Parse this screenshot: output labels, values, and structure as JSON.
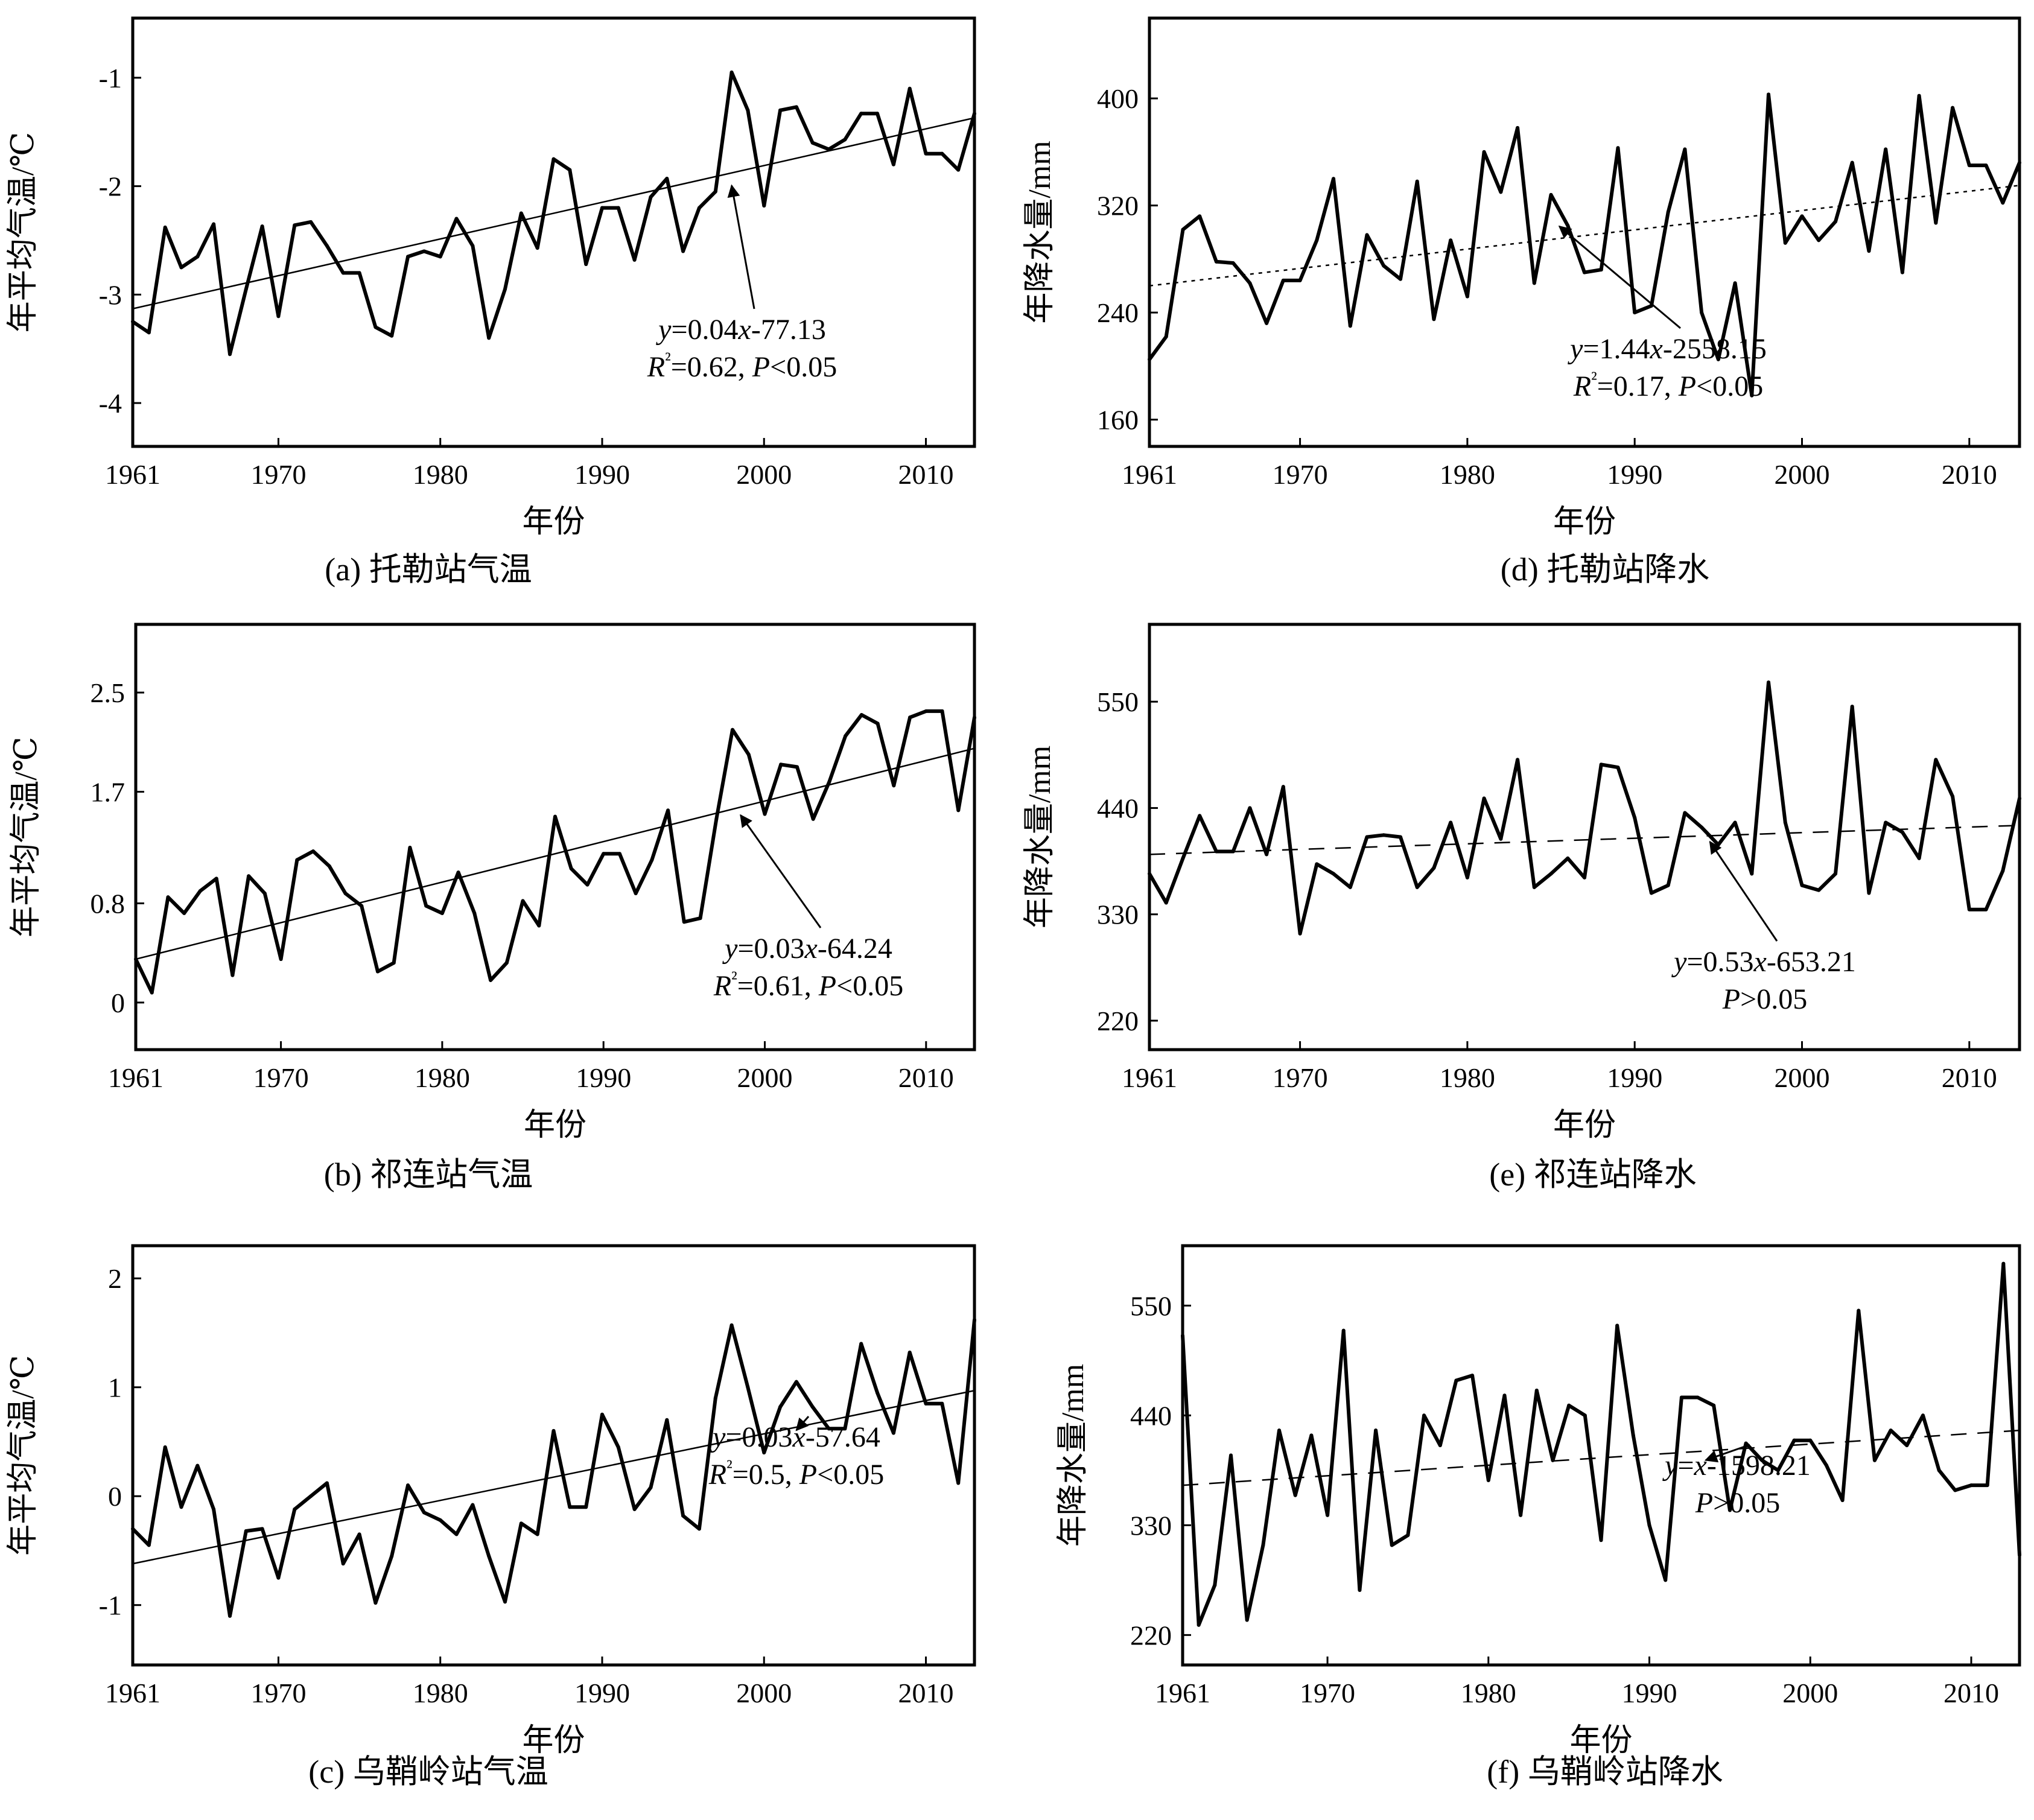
{
  "colors": {
    "ink": "#000000",
    "background": "#ffffff"
  },
  "chart_data": [
    {
      "id": "a",
      "type": "line",
      "caption": "(a) 托勒站气温",
      "xlabel": "年份",
      "ylabel": "年平均气温/℃",
      "xlim": [
        1961,
        2013
      ],
      "ylim": [
        -4.4,
        -0.45
      ],
      "xticks": [
        1961,
        1970,
        1980,
        1990,
        2000,
        2010
      ],
      "yticks": [
        -4,
        -3,
        -2,
        -1
      ],
      "ytick_labels": [
        "-4",
        "-3",
        "-2",
        "-1"
      ],
      "trend": {
        "style": "solid",
        "x": [
          1961,
          2013
        ],
        "y": [
          -3.13,
          -1.37
        ]
      },
      "equation": {
        "line1": [
          "y",
          "=0.04",
          "x",
          "-77.13"
        ],
        "line2": [
          "R",
          "²",
          "=0.62, ",
          "P",
          "<0.05"
        ]
      },
      "arrow_to": [
        1998,
        -1.95
      ],
      "x": [
        1961,
        1962,
        1963,
        1964,
        1965,
        1966,
        1967,
        1968,
        1969,
        1970,
        1971,
        1972,
        1973,
        1974,
        1975,
        1976,
        1977,
        1978,
        1979,
        1980,
        1981,
        1982,
        1983,
        1984,
        1985,
        1986,
        1987,
        1988,
        1989,
        1990,
        1991,
        1992,
        1993,
        1994,
        1995,
        1996,
        1997,
        1998,
        1999,
        2000,
        2001,
        2002,
        2003,
        2004,
        2005,
        2006,
        2007,
        2008,
        2009,
        2010,
        2011,
        2012,
        2013
      ],
      "y": [
        -3.25,
        -3.35,
        -2.38,
        -2.75,
        -2.65,
        -2.35,
        -3.55,
        -2.95,
        -2.37,
        -3.2,
        -2.36,
        -2.33,
        -2.55,
        -2.8,
        -2.8,
        -3.3,
        -3.38,
        -2.65,
        -2.6,
        -2.65,
        -2.3,
        -2.55,
        -3.4,
        -2.95,
        -2.25,
        -2.57,
        -1.75,
        -1.85,
        -2.72,
        -2.2,
        -2.2,
        -2.68,
        -2.1,
        -1.93,
        -2.6,
        -2.2,
        -2.05,
        -0.95,
        -1.3,
        -2.18,
        -1.3,
        -1.27,
        -1.6,
        -1.66,
        -1.57,
        -1.33,
        -1.33,
        -1.8,
        -1.1,
        -1.7,
        -1.7,
        -1.85,
        -1.33
      ]
    },
    {
      "id": "b",
      "type": "line",
      "caption": "(b) 祁连站气温",
      "xlabel": "年份",
      "ylabel": "年平均气温/℃",
      "xlim": [
        1961,
        2013
      ],
      "ylim": [
        -0.38,
        3.05
      ],
      "xticks": [
        1961,
        1970,
        1980,
        1990,
        2000,
        2010
      ],
      "yticks": [
        0,
        0.8,
        1.7,
        2.5
      ],
      "ytick_labels": [
        "0",
        "0.8",
        "1.7",
        "2.5"
      ],
      "trend": {
        "style": "solid",
        "x": [
          1961,
          2013
        ],
        "y": [
          0.35,
          2.05
        ]
      },
      "equation": {
        "line1": [
          "y",
          "=0.03",
          "x",
          "-64.24"
        ],
        "line2": [
          "R",
          "²",
          "=0.61, ",
          "P",
          "<0.05"
        ]
      },
      "arrow_to": [
        1998.5,
        1.55
      ],
      "x": [
        1961,
        1962,
        1963,
        1964,
        1965,
        1966,
        1967,
        1968,
        1969,
        1970,
        1971,
        1972,
        1973,
        1974,
        1975,
        1976,
        1977,
        1978,
        1979,
        1980,
        1981,
        1982,
        1983,
        1984,
        1985,
        1986,
        1987,
        1988,
        1989,
        1990,
        1991,
        1992,
        1993,
        1994,
        1995,
        1996,
        1997,
        1998,
        1999,
        2000,
        2001,
        2002,
        2003,
        2004,
        2005,
        2006,
        2007,
        2008,
        2009,
        2010,
        2011,
        2012,
        2013
      ],
      "y": [
        0.35,
        0.08,
        0.85,
        0.72,
        0.9,
        1.0,
        0.22,
        1.02,
        0.88,
        0.35,
        1.15,
        1.22,
        1.1,
        0.88,
        0.78,
        0.25,
        0.32,
        1.25,
        0.78,
        0.72,
        1.05,
        0.72,
        0.18,
        0.32,
        0.82,
        0.62,
        1.5,
        1.08,
        0.95,
        1.2,
        1.2,
        0.88,
        1.15,
        1.55,
        0.65,
        0.68,
        1.48,
        2.2,
        2.0,
        1.52,
        1.92,
        1.9,
        1.48,
        1.78,
        2.15,
        2.32,
        2.25,
        1.75,
        2.3,
        2.35,
        2.35,
        1.55,
        2.3
      ]
    },
    {
      "id": "c",
      "type": "line",
      "caption": "(c) 乌鞘岭站气温",
      "xlabel": "年份",
      "ylabel": "年平均气温/℃",
      "xlim": [
        1961,
        2013
      ],
      "ylim": [
        -1.55,
        2.3
      ],
      "xticks": [
        1961,
        1970,
        1980,
        1990,
        2000,
        2010
      ],
      "yticks": [
        -1,
        0,
        1,
        2
      ],
      "ytick_labels": [
        "-1",
        "0",
        "1",
        "2"
      ],
      "trend": {
        "style": "solid",
        "x": [
          1961,
          2013
        ],
        "y": [
          -0.62,
          0.97
        ]
      },
      "equation": {
        "line1": [
          "y",
          "=0.03",
          "x",
          "-57.64"
        ],
        "line2": [
          "R",
          "²",
          "=0.5, ",
          "P",
          "<0.05"
        ]
      },
      "arrow_to": [
        2002,
        0.65
      ],
      "x": [
        1961,
        1962,
        1963,
        1964,
        1965,
        1966,
        1967,
        1968,
        1969,
        1970,
        1971,
        1972,
        1973,
        1974,
        1975,
        1976,
        1977,
        1978,
        1979,
        1980,
        1981,
        1982,
        1983,
        1984,
        1985,
        1986,
        1987,
        1988,
        1989,
        1990,
        1991,
        1992,
        1993,
        1994,
        1995,
        1996,
        1997,
        1998,
        1999,
        2000,
        2001,
        2002,
        2003,
        2004,
        2005,
        2006,
        2007,
        2008,
        2009,
        2010,
        2011,
        2012,
        2013
      ],
      "y": [
        -0.3,
        -0.45,
        0.45,
        -0.1,
        0.28,
        -0.12,
        -1.1,
        -0.32,
        -0.3,
        -0.75,
        -0.12,
        0.0,
        0.12,
        -0.62,
        -0.35,
        -0.98,
        -0.55,
        0.1,
        -0.15,
        -0.22,
        -0.35,
        -0.08,
        -0.55,
        -0.97,
        -0.25,
        -0.35,
        0.6,
        -0.1,
        -0.1,
        0.75,
        0.45,
        -0.12,
        0.08,
        0.7,
        -0.18,
        -0.3,
        0.9,
        1.57,
        1.0,
        0.4,
        0.82,
        1.05,
        0.82,
        0.62,
        0.62,
        1.4,
        0.95,
        0.58,
        1.32,
        0.85,
        0.85,
        0.12,
        1.62
      ]
    },
    {
      "id": "d",
      "type": "line",
      "caption": "(d) 托勒站降水",
      "xlabel": "年份",
      "ylabel": "年降水量/mm",
      "xlim": [
        1961,
        2013
      ],
      "ylim": [
        140,
        460
      ],
      "xticks": [
        1961,
        1970,
        1980,
        1990,
        2000,
        2010
      ],
      "yticks": [
        160,
        240,
        320,
        400
      ],
      "ytick_labels": [
        "160",
        "240",
        "320",
        "400"
      ],
      "trend": {
        "style": "dotted",
        "x": [
          1961,
          2013
        ],
        "y": [
          260,
          335
        ]
      },
      "equation": {
        "line1": [
          "y",
          "=1.44",
          "x",
          "-2558.15"
        ],
        "line2": [
          "R",
          "²",
          "=0.17, ",
          "P",
          "<0.05"
        ]
      },
      "arrow_to": [
        1985.5,
        308
      ],
      "x": [
        1961,
        1962,
        1963,
        1964,
        1965,
        1966,
        1967,
        1968,
        1969,
        1970,
        1971,
        1972,
        1973,
        1974,
        1975,
        1976,
        1977,
        1978,
        1979,
        1980,
        1981,
        1982,
        1983,
        1984,
        1985,
        1986,
        1987,
        1988,
        1989,
        1990,
        1991,
        1992,
        1993,
        1994,
        1995,
        1996,
        1997,
        1998,
        1999,
        2000,
        2001,
        2002,
        2003,
        2004,
        2005,
        2006,
        2007,
        2008,
        2009,
        2010,
        2011,
        2012,
        2013
      ],
      "y": [
        205,
        222,
        302,
        312,
        278,
        277,
        262,
        232,
        264,
        264,
        294,
        340,
        230,
        298,
        275,
        265,
        338,
        235,
        294,
        252,
        360,
        330,
        378,
        262,
        328,
        305,
        270,
        272,
        363,
        240,
        245,
        315,
        362,
        240,
        205,
        262,
        178,
        403,
        292,
        312,
        294,
        308,
        352,
        286,
        362,
        270,
        402,
        307,
        393,
        350,
        350,
        322,
        352
      ]
    },
    {
      "id": "e",
      "type": "line",
      "caption": "(e) 祁连站降水",
      "xlabel": "年份",
      "ylabel": "年降水量/mm",
      "xlim": [
        1961,
        2013
      ],
      "ylim": [
        190,
        630
      ],
      "xticks": [
        1961,
        1970,
        1980,
        1990,
        2000,
        2010
      ],
      "yticks": [
        220,
        330,
        440,
        550
      ],
      "ytick_labels": [
        "220",
        "330",
        "440",
        "550"
      ],
      "trend": {
        "style": "dashed",
        "x": [
          1961,
          2013
        ],
        "y": [
          392,
          422
        ]
      },
      "equation": {
        "line1": [
          "y",
          "=0.53",
          "x",
          "-653.21"
        ],
        "line2": [
          "",
          "",
          "",
          "P",
          ">0.05"
        ]
      },
      "arrow_to": [
        1994.5,
        410
      ],
      "x": [
        1961,
        1962,
        1963,
        1964,
        1965,
        1966,
        1967,
        1968,
        1969,
        1970,
        1971,
        1972,
        1973,
        1974,
        1975,
        1976,
        1977,
        1978,
        1979,
        1980,
        1981,
        1982,
        1983,
        1984,
        1985,
        1986,
        1987,
        1988,
        1989,
        1990,
        1991,
        1992,
        1993,
        1994,
        1995,
        1996,
        1997,
        1998,
        1999,
        2000,
        2001,
        2002,
        2003,
        2004,
        2005,
        2006,
        2007,
        2008,
        2009,
        2010,
        2011,
        2012,
        2013
      ],
      "y": [
        372,
        342,
        388,
        432,
        395,
        395,
        440,
        392,
        462,
        310,
        382,
        372,
        358,
        410,
        412,
        410,
        358,
        378,
        425,
        368,
        450,
        408,
        490,
        358,
        372,
        388,
        368,
        485,
        482,
        430,
        352,
        360,
        435,
        420,
        402,
        425,
        372,
        570,
        425,
        360,
        355,
        372,
        545,
        352,
        425,
        415,
        388,
        490,
        452,
        335,
        335,
        375,
        450
      ]
    },
    {
      "id": "f",
      "type": "line",
      "caption": "(f) 乌鞘岭站降水",
      "xlabel": "年份",
      "ylabel": "年降水量/mm",
      "xlim": [
        1961,
        2013
      ],
      "ylim": [
        190,
        610
      ],
      "xticks": [
        1961,
        1970,
        1980,
        1990,
        2000,
        2010
      ],
      "yticks": [
        220,
        330,
        440,
        550
      ],
      "ytick_labels": [
        "220",
        "330",
        "440",
        "550"
      ],
      "trend": {
        "style": "dashed",
        "x": [
          1961,
          2013
        ],
        "y": [
          370,
          425
        ]
      },
      "equation": {
        "line1": [
          "y",
          "=",
          "x",
          "-1598.21"
        ],
        "line2": [
          "",
          "",
          "",
          "P",
          ">0.05"
        ]
      },
      "arrow_to": [
        1993.5,
        400
      ],
      "x": [
        1961,
        1962,
        1963,
        1964,
        1965,
        1966,
        1967,
        1968,
        1969,
        1970,
        1971,
        1972,
        1973,
        1974,
        1975,
        1976,
        1977,
        1978,
        1979,
        1980,
        1981,
        1982,
        1983,
        1984,
        1985,
        1986,
        1987,
        1988,
        1989,
        1990,
        1991,
        1992,
        1993,
        1994,
        1995,
        1996,
        1997,
        1998,
        1999,
        2000,
        2001,
        2002,
        2003,
        2004,
        2005,
        2006,
        2007,
        2008,
        2009,
        2010,
        2011,
        2012,
        2013
      ],
      "y": [
        520,
        230,
        270,
        400,
        235,
        310,
        425,
        360,
        420,
        340,
        525,
        265,
        425,
        310,
        320,
        440,
        410,
        475,
        480,
        375,
        460,
        340,
        465,
        395,
        450,
        440,
        315,
        530,
        420,
        330,
        275,
        458,
        458,
        450,
        345,
        412,
        395,
        385,
        415,
        415,
        390,
        355,
        545,
        395,
        425,
        410,
        440,
        385,
        365,
        370,
        370,
        592,
        300
      ]
    }
  ]
}
